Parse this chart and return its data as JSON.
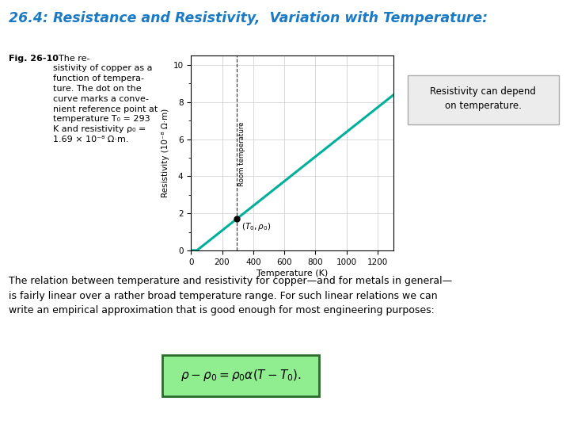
{
  "title": "26.4: Resistance and Resistivity,  Variation with Temperature:",
  "title_color": "#1B7AC4",
  "title_fontsize": 12.5,
  "bg_color": "#ffffff",
  "fig_caption_bold": "Fig. 26-10",
  "fig_caption_rest": "  The re-\nsistivity of copper as a\nfunction of tempera-\nture. The dot on the\ncurve marks a conve-\nnient reference point at\ntemperature T₀ = 293\nK and resistivity ρ₀ =\n1.69 × 10⁻⁸ Ω·m.",
  "annotation_box_text": "Resistivity can depend\non temperature.",
  "annotation_box_color": "#ececec",
  "curve_color": "#00b09a",
  "dot_color": "#000000",
  "xlabel": "Temperature (K)",
  "ylabel": "Resistivity (10⁻⁸ Ω·m)",
  "room_temp_label": "Room temperature",
  "xlim": [
    0,
    1300
  ],
  "ylim": [
    0,
    10.5
  ],
  "xticks": [
    0,
    200,
    400,
    600,
    800,
    1000,
    1200
  ],
  "yticks": [
    0,
    2,
    4,
    6,
    8,
    10
  ],
  "T0": 293,
  "rho0": 1.69,
  "alpha": 0.00393,
  "body_text": "The relation between temperature and resistivity for copper—and for metals in general—\nis fairly linear over a rather broad temperature range. For such linear relations we can\nwrite an empirical approximation that is good enough for most engineering purposes:",
  "formula": "$\\rho - \\rho_0 = \\rho_0\\alpha(T - T_0).$",
  "formula_box_color": "#90EE90",
  "formula_box_edge": "#2d6a2d"
}
